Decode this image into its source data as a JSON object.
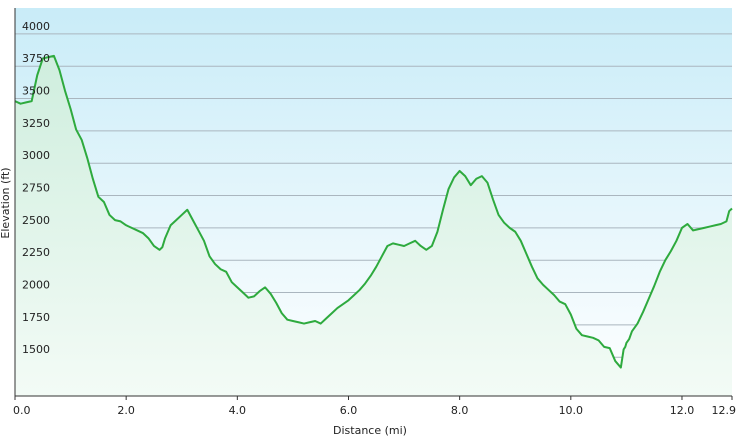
{
  "chart_data": {
    "type": "area",
    "title": "",
    "xlabel": "Distance (mi)",
    "ylabel": "Elevation (ft)",
    "xlim": [
      0,
      12.9
    ],
    "ylim": [
      1200,
      4200
    ],
    "x_ticks": [
      0.0,
      2.0,
      4.0,
      6.0,
      8.0,
      10.0,
      12.0,
      12.9
    ],
    "x_tick_labels": [
      "0.0",
      "2.0",
      "4.0",
      "6.0",
      "8.0",
      "10.0",
      "12.0",
      "12.9"
    ],
    "y_ticks": [
      1500,
      1750,
      2000,
      2250,
      2500,
      2750,
      3000,
      3250,
      3500,
      3750,
      4000
    ],
    "y_tick_labels": [
      "1500",
      "1750",
      "2000",
      "2250",
      "2500",
      "2750",
      "3000",
      "3250",
      "3500",
      "3750",
      "4000"
    ],
    "grid": true,
    "colors": {
      "line": "#2eaa3e",
      "fill_top": "#cfeede",
      "fill_bottom": "#f3fbf6",
      "bg_top": "#c9ecf8",
      "bg_bottom": "#ffffff",
      "grid": "#aab6bf",
      "axis": "#333333"
    },
    "series": [
      {
        "name": "",
        "x": [
          0.0,
          0.1,
          0.2,
          0.3,
          0.4,
          0.5,
          0.6,
          0.7,
          0.8,
          0.9,
          1.0,
          1.1,
          1.2,
          1.3,
          1.4,
          1.5,
          1.6,
          1.7,
          1.8,
          1.9,
          2.0,
          2.1,
          2.2,
          2.3,
          2.4,
          2.5,
          2.6,
          2.65,
          2.7,
          2.8,
          2.9,
          3.0,
          3.1,
          3.2,
          3.3,
          3.4,
          3.5,
          3.6,
          3.7,
          3.8,
          3.9,
          4.0,
          4.1,
          4.2,
          4.3,
          4.4,
          4.5,
          4.6,
          4.7,
          4.8,
          4.9,
          5.0,
          5.1,
          5.2,
          5.3,
          5.4,
          5.5,
          5.6,
          5.7,
          5.8,
          5.9,
          6.0,
          6.1,
          6.2,
          6.3,
          6.4,
          6.5,
          6.6,
          6.7,
          6.8,
          6.9,
          7.0,
          7.1,
          7.2,
          7.3,
          7.4,
          7.5,
          7.6,
          7.7,
          7.8,
          7.9,
          8.0,
          8.1,
          8.2,
          8.3,
          8.4,
          8.5,
          8.6,
          8.7,
          8.8,
          8.9,
          9.0,
          9.1,
          9.2,
          9.3,
          9.4,
          9.5,
          9.6,
          9.7,
          9.8,
          9.9,
          10.0,
          10.1,
          10.2,
          10.3,
          10.4,
          10.5,
          10.6,
          10.7,
          10.8,
          10.9,
          10.95,
          10.98,
          11.0,
          11.05,
          11.1,
          11.2,
          11.3,
          11.4,
          11.5,
          11.6,
          11.7,
          11.8,
          11.9,
          12.0,
          12.1,
          12.2,
          12.3,
          12.4,
          12.5,
          12.6,
          12.7,
          12.8,
          12.85,
          12.9
        ],
        "values": [
          3480,
          3460,
          3470,
          3480,
          3680,
          3810,
          3820,
          3830,
          3720,
          3560,
          3420,
          3260,
          3180,
          3040,
          2880,
          2740,
          2700,
          2600,
          2560,
          2550,
          2520,
          2500,
          2480,
          2460,
          2420,
          2360,
          2330,
          2350,
          2420,
          2520,
          2560,
          2600,
          2640,
          2560,
          2480,
          2400,
          2280,
          2220,
          2180,
          2160,
          2080,
          2040,
          2000,
          1960,
          1970,
          2010,
          2040,
          1990,
          1920,
          1840,
          1790,
          1780,
          1770,
          1760,
          1770,
          1780,
          1760,
          1800,
          1840,
          1880,
          1910,
          1940,
          1980,
          2020,
          2070,
          2130,
          2200,
          2280,
          2360,
          2380,
          2370,
          2360,
          2380,
          2400,
          2360,
          2330,
          2360,
          2470,
          2640,
          2800,
          2890,
          2940,
          2900,
          2830,
          2880,
          2900,
          2850,
          2720,
          2600,
          2540,
          2500,
          2470,
          2400,
          2300,
          2200,
          2110,
          2060,
          2020,
          1980,
          1930,
          1910,
          1830,
          1720,
          1670,
          1660,
          1650,
          1630,
          1580,
          1570,
          1470,
          1420,
          1560,
          1580,
          1610,
          1640,
          1700,
          1760,
          1850,
          1950,
          2050,
          2160,
          2250,
          2320,
          2400,
          2500,
          2530,
          2480,
          2490,
          2500,
          2510,
          2520,
          2530,
          2550,
          2630,
          2650
        ]
      }
    ]
  }
}
